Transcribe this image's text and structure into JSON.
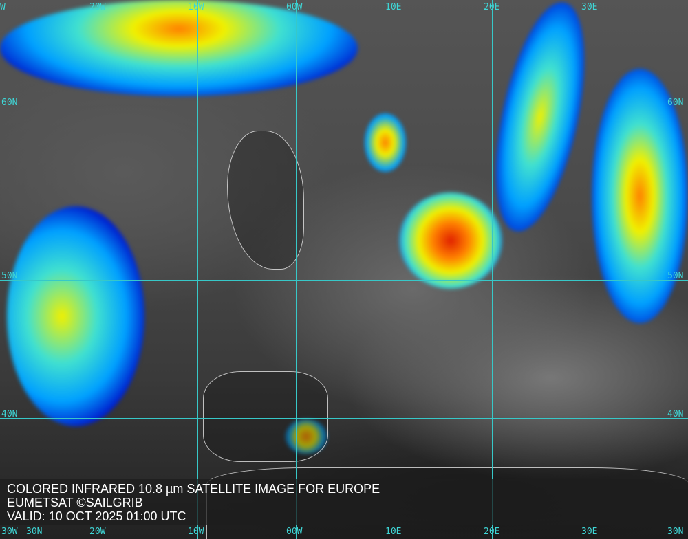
{
  "caption": {
    "line1": "COLORED INFRARED 10.8 µm SATELLITE IMAGE FOR EUROPE",
    "line2": "EUMETSAT ©SAILGRIB",
    "line3": "VALID:  10 OCT 2025 01:00 UTC"
  },
  "grid": {
    "color": "#37c8c8",
    "top_labels": [
      "W",
      "20W",
      "10W",
      "00W",
      "10E",
      "20E",
      "30E"
    ],
    "bottom_labels": [
      "30W",
      "20W",
      "10W",
      "00W",
      "10E",
      "20E",
      "30E"
    ],
    "left_lat_labels": [
      "60N",
      "50N",
      "40N",
      "30N"
    ],
    "right_lat_labels": [
      "60N",
      "50N",
      "40N",
      "30N"
    ]
  },
  "colorscale": [
    "#0010c8",
    "#00a0ff",
    "#40e0d0",
    "#f0f000",
    "#ff8000",
    "#e02000"
  ]
}
